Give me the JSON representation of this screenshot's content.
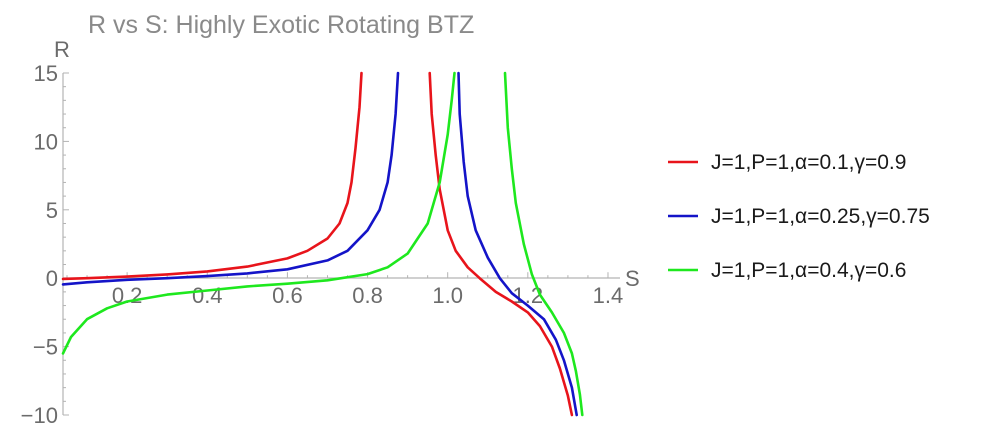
{
  "chart_data": {
    "type": "line",
    "title": "R vs S: Highly Exotic Rotating BTZ",
    "xlabel": "S",
    "ylabel": "R",
    "xlim": [
      0.04,
      1.43
    ],
    "ylim": [
      -10,
      15
    ],
    "xticks": [
      0.2,
      0.4,
      0.6,
      0.8,
      1.0,
      1.2,
      1.4
    ],
    "xtick_labels": [
      "0.2",
      "0.4",
      "0.6",
      "0.8",
      "1.0",
      "1.2",
      "1.4"
    ],
    "yticks": [
      15,
      10,
      5,
      0,
      -5,
      -10
    ],
    "ytick_labels": [
      "15",
      "10",
      "5",
      "0",
      "−5",
      "−10"
    ],
    "legend_position": "right",
    "series": [
      {
        "name": "J=1,P=1,α=0.1,γ=0.9",
        "color": "#e8141b",
        "segments": [
          [
            [
              0.04,
              -0.05
            ],
            [
              0.1,
              0.0
            ],
            [
              0.2,
              0.12
            ],
            [
              0.3,
              0.28
            ],
            [
              0.4,
              0.5
            ],
            [
              0.5,
              0.85
            ],
            [
              0.6,
              1.45
            ],
            [
              0.65,
              2.0
            ],
            [
              0.7,
              2.9
            ],
            [
              0.73,
              4.0
            ],
            [
              0.75,
              5.5
            ],
            [
              0.76,
              7.0
            ],
            [
              0.77,
              9.5
            ],
            [
              0.78,
              12.5
            ],
            [
              0.785,
              15.0
            ]
          ],
          [
            [
              0.955,
              15.0
            ],
            [
              0.96,
              12.0
            ],
            [
              0.97,
              9.0
            ],
            [
              0.98,
              6.5
            ],
            [
              1.0,
              3.5
            ],
            [
              1.02,
              2.0
            ],
            [
              1.05,
              0.8
            ],
            [
              1.08,
              0.0
            ],
            [
              1.12,
              -1.0
            ],
            [
              1.16,
              -1.7
            ],
            [
              1.2,
              -2.5
            ],
            [
              1.23,
              -3.5
            ],
            [
              1.26,
              -5.0
            ],
            [
              1.28,
              -6.6
            ],
            [
              1.3,
              -8.6
            ],
            [
              1.31,
              -10.0
            ]
          ]
        ]
      },
      {
        "name": "J=1,P=1,α=0.25,γ=0.75",
        "color": "#1414c8",
        "segments": [
          [
            [
              0.04,
              -0.45
            ],
            [
              0.1,
              -0.3
            ],
            [
              0.2,
              -0.12
            ],
            [
              0.3,
              0.0
            ],
            [
              0.4,
              0.15
            ],
            [
              0.5,
              0.35
            ],
            [
              0.6,
              0.65
            ],
            [
              0.7,
              1.3
            ],
            [
              0.75,
              2.0
            ],
            [
              0.8,
              3.5
            ],
            [
              0.83,
              5.0
            ],
            [
              0.85,
              7.0
            ],
            [
              0.86,
              9.0
            ],
            [
              0.87,
              12.0
            ],
            [
              0.876,
              15.0
            ]
          ],
          [
            [
              1.027,
              15.0
            ],
            [
              1.03,
              12.0
            ],
            [
              1.04,
              8.5
            ],
            [
              1.05,
              6.0
            ],
            [
              1.07,
              3.5
            ],
            [
              1.1,
              1.5
            ],
            [
              1.13,
              0.0
            ],
            [
              1.16,
              -1.1
            ],
            [
              1.2,
              -2.0
            ],
            [
              1.24,
              -3.0
            ],
            [
              1.27,
              -4.5
            ],
            [
              1.29,
              -6.0
            ],
            [
              1.31,
              -8.0
            ],
            [
              1.322,
              -10.0
            ]
          ]
        ]
      },
      {
        "name": "J=1,P=1,α=0.4,γ=0.6",
        "color": "#1ee81e",
        "segments": [
          [
            [
              0.04,
              -5.5
            ],
            [
              0.06,
              -4.3
            ],
            [
              0.1,
              -3.0
            ],
            [
              0.15,
              -2.2
            ],
            [
              0.2,
              -1.7
            ],
            [
              0.3,
              -1.2
            ],
            [
              0.4,
              -0.9
            ],
            [
              0.5,
              -0.6
            ],
            [
              0.6,
              -0.4
            ],
            [
              0.7,
              -0.15
            ],
            [
              0.8,
              0.3
            ],
            [
              0.85,
              0.8
            ],
            [
              0.9,
              1.8
            ],
            [
              0.95,
              4.0
            ],
            [
              0.98,
              7.0
            ],
            [
              1.0,
              10.5
            ],
            [
              1.01,
              13.0
            ],
            [
              1.017,
              15.0
            ]
          ],
          [
            [
              1.143,
              15.0
            ],
            [
              1.15,
              11.0
            ],
            [
              1.16,
              8.0
            ],
            [
              1.17,
              5.5
            ],
            [
              1.19,
              2.5
            ],
            [
              1.21,
              0.3
            ],
            [
              1.23,
              -1.2
            ],
            [
              1.26,
              -2.5
            ],
            [
              1.29,
              -4.0
            ],
            [
              1.31,
              -5.5
            ],
            [
              1.32,
              -6.8
            ],
            [
              1.33,
              -8.5
            ],
            [
              1.336,
              -10.0
            ]
          ]
        ]
      }
    ]
  }
}
